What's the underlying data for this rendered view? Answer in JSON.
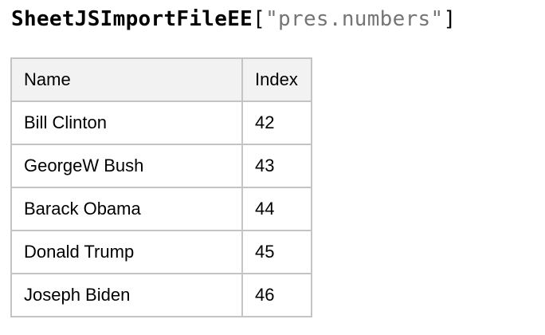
{
  "title": {
    "variable": "SheetJSImportFileEE",
    "bracket_open": "[",
    "string_literal": "\"pres.numbers\"",
    "bracket_close": "]"
  },
  "table": {
    "columns": [
      "Name",
      "Index"
    ],
    "rows": [
      {
        "name": "Bill Clinton",
        "index": "42"
      },
      {
        "name": "GeorgeW Bush",
        "index": "43"
      },
      {
        "name": "Barack Obama",
        "index": "44"
      },
      {
        "name": "Donald Trump",
        "index": "45"
      },
      {
        "name": "Joseph Biden",
        "index": "46"
      }
    ]
  },
  "colors": {
    "title_text": "#000000",
    "title_string": "#757575",
    "table_border": "#c4c4c4",
    "header_background": "#f2f2f2",
    "cell_text": "#000000"
  }
}
